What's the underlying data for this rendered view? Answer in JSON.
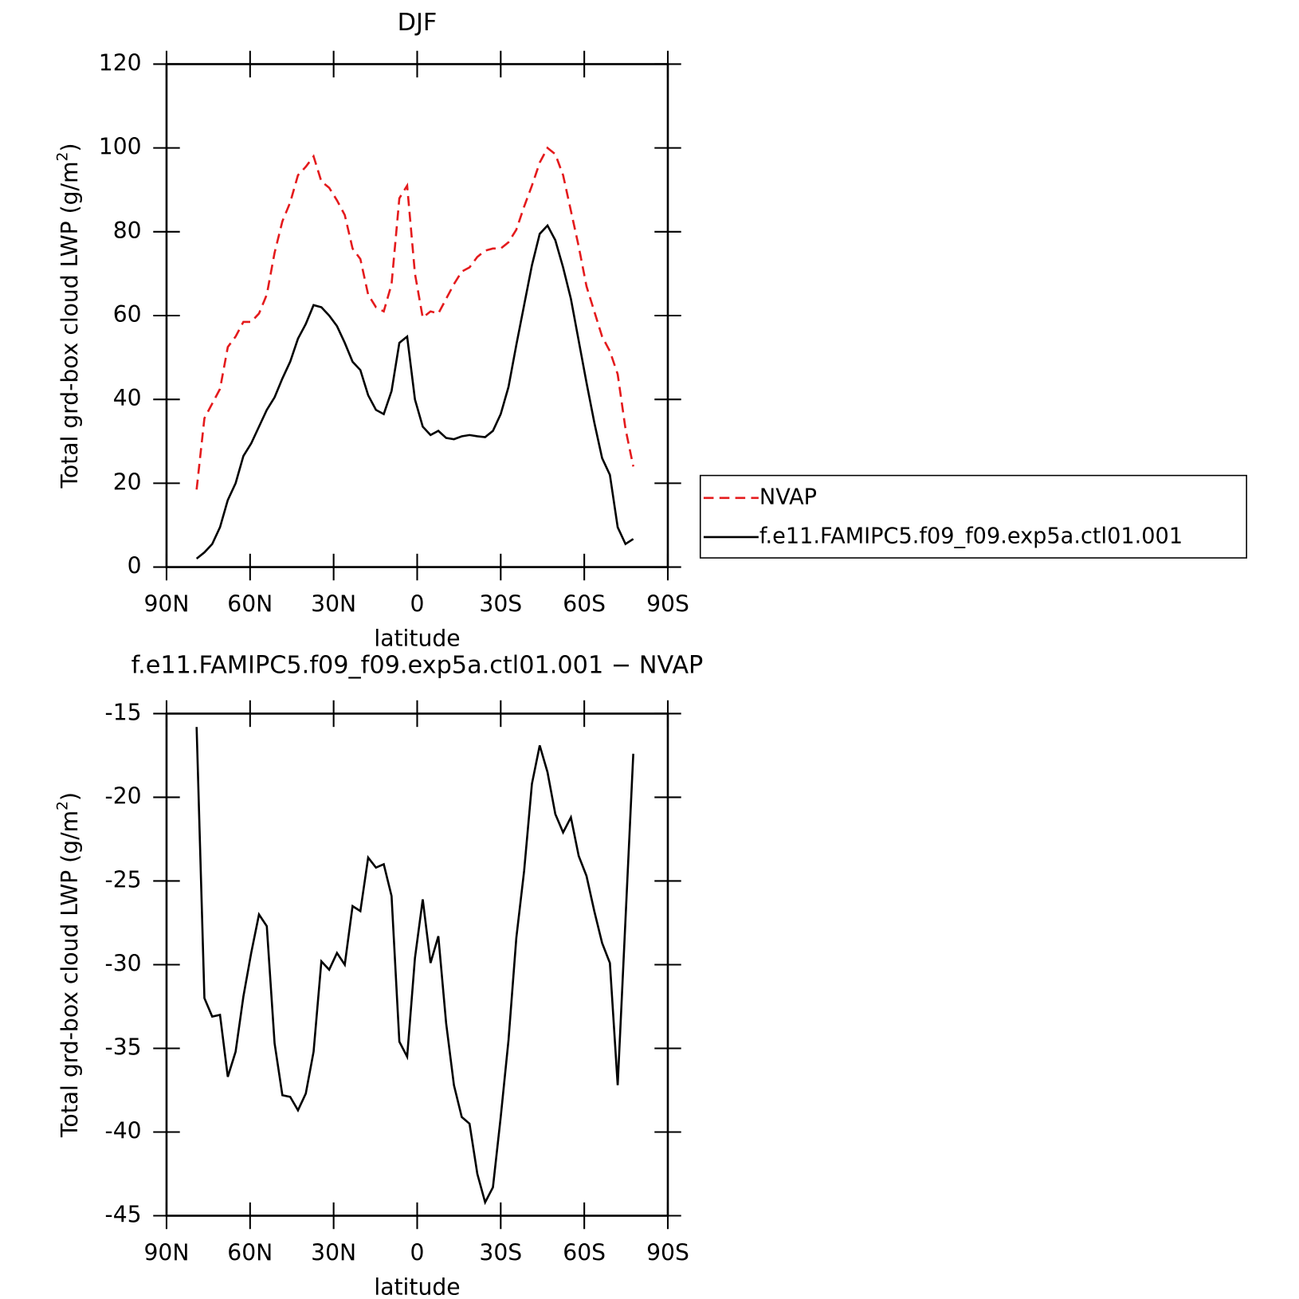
{
  "chart_data": [
    {
      "type": "line",
      "title": "DJF",
      "xlabel": "latitude",
      "ylabel": "Total grd-box cloud LWP (g/m²)",
      "x": [
        79.2,
        76.4,
        73.6,
        70.8,
        68,
        65.2,
        62.4,
        59.6,
        56.8,
        54,
        51.2,
        48.4,
        45.6,
        42.8,
        40,
        37.2,
        34.4,
        31.6,
        28.8,
        26,
        23.2,
        20.4,
        17.6,
        14.8,
        12,
        9.2,
        6.4,
        3.6,
        0.8,
        -2,
        -4.8,
        -7.6,
        -10.4,
        -13.2,
        -16,
        -18.8,
        -21.6,
        -24.4,
        -27.2,
        -30,
        -32.8,
        -35.6,
        -38.4,
        -41.2,
        -44,
        -46.8,
        -49.6,
        -52.4,
        -55.2,
        -58,
        -60.8,
        -63.6,
        -66.4,
        -69.2,
        -72,
        -74.8,
        -77.6
      ],
      "series": [
        {
          "name": "NVAP",
          "color": "#e41a1c",
          "linestyle": "dashed",
          "values": [
            18.5,
            35.5,
            39,
            42.5,
            52.5,
            55,
            58.5,
            58.5,
            60.5,
            65,
            75,
            82.5,
            87,
            93.5,
            95.5,
            98,
            92,
            90.5,
            87.5,
            84,
            76,
            73.5,
            65,
            62,
            61,
            67.5,
            88,
            91,
            70,
            59.5,
            61,
            60.5,
            64,
            67.5,
            70.5,
            71.5,
            74,
            75.5,
            76,
            76,
            77.5,
            80.5,
            86,
            91,
            96.5,
            100,
            98.5,
            93.5,
            85,
            76.5,
            67,
            61,
            55,
            51.5,
            46,
            33,
            24
          ]
        },
        {
          "name": "f.e11.FAMIPC5.f09_f09.exp5a.ctl01.001",
          "color": "#000000",
          "linestyle": "solid",
          "values": [
            2,
            3.5,
            5.5,
            9.5,
            16,
            20,
            26.5,
            29.5,
            33.5,
            37.5,
            40.5,
            45,
            49,
            54.5,
            58,
            62.5,
            62,
            60,
            57.5,
            53.5,
            49,
            47,
            41,
            37.5,
            36.5,
            42,
            53.5,
            55,
            40,
            33.5,
            31.5,
            32.5,
            30.8,
            30.5,
            31.2,
            31.5,
            31.2,
            31,
            32.5,
            36.5,
            43,
            53,
            62.5,
            72,
            79.5,
            81.5,
            78,
            71.5,
            64,
            54,
            44,
            34.5,
            26,
            22,
            9.5,
            5.5,
            6.7
          ]
        }
      ],
      "xlim": [
        90,
        -90
      ],
      "xticks": [
        {
          "value": 90,
          "label": "90N"
        },
        {
          "value": 60,
          "label": "60N"
        },
        {
          "value": 30,
          "label": "30N"
        },
        0,
        {
          "value": -30,
          "label": "30S"
        },
        {
          "value": -60,
          "label": "60S"
        },
        {
          "value": -90,
          "label": "90S"
        }
      ],
      "ylim": [
        0,
        120
      ],
      "yticks": [
        0,
        20,
        40,
        60,
        80,
        100,
        120
      ],
      "grid": false,
      "legend": "right"
    },
    {
      "type": "line",
      "title": "f.e11.FAMIPC5.f09_f09.exp5a.ctl01.001 − NVAP",
      "xlabel": "latitude",
      "ylabel": "Total grd-box cloud LWP (g/m²)",
      "x": [
        79.2,
        76.4,
        73.6,
        70.8,
        68,
        65.2,
        62.4,
        59.6,
        56.8,
        54,
        51.2,
        48.4,
        45.6,
        42.8,
        40,
        37.2,
        34.4,
        31.6,
        28.8,
        26,
        23.2,
        20.4,
        17.6,
        14.8,
        12,
        9.2,
        6.4,
        3.6,
        0.8,
        -2,
        -4.8,
        -7.6,
        -10.4,
        -13.2,
        -16,
        -18.8,
        -21.6,
        -24.4,
        -27.2,
        -30,
        -32.8,
        -35.6,
        -38.4,
        -41.2,
        -44,
        -46.8,
        -49.6,
        -52.4,
        -55.2,
        -58,
        -60.8,
        -63.6,
        -66.4,
        -69.2,
        -72,
        -74.8,
        -77.6
      ],
      "values": [
        -15.8,
        -32,
        -33.1,
        -33,
        -36.7,
        -35.2,
        -31.9,
        -29.3,
        -27,
        -27.7,
        -34.7,
        -37.8,
        -37.9,
        -38.7,
        -37.7,
        -35.2,
        -29.8,
        -30.3,
        -29.3,
        -30,
        -26.5,
        -26.8,
        -23.6,
        -24.2,
        -24,
        -25.9,
        -34.6,
        -35.5,
        -29.6,
        -26.1,
        -29.9,
        -28.3,
        -33.5,
        -37.2,
        -39.1,
        -39.5,
        -42.5,
        -44.2,
        -43.3,
        -39.1,
        -34.5,
        -28.4,
        -24.4,
        -19.2,
        -16.9,
        -18.5,
        -21,
        -22.1,
        -21.2,
        -23.5,
        -24.7,
        -26.8,
        -28.7,
        -29.9,
        -37.2,
        -27.3,
        -17.4
      ],
      "color": "#000000",
      "xlim": [
        90,
        -90
      ],
      "xticks": [
        {
          "value": 90,
          "label": "90N"
        },
        {
          "value": 60,
          "label": "60N"
        },
        {
          "value": 30,
          "label": "30N"
        },
        0,
        {
          "value": -30,
          "label": "30S"
        },
        {
          "value": -60,
          "label": "60S"
        },
        {
          "value": -90,
          "label": "90S"
        }
      ],
      "ylim": [
        -45,
        -15
      ],
      "yticks": [
        -45,
        -40,
        -35,
        -30,
        -25,
        -20,
        -15
      ],
      "grid": false
    }
  ]
}
